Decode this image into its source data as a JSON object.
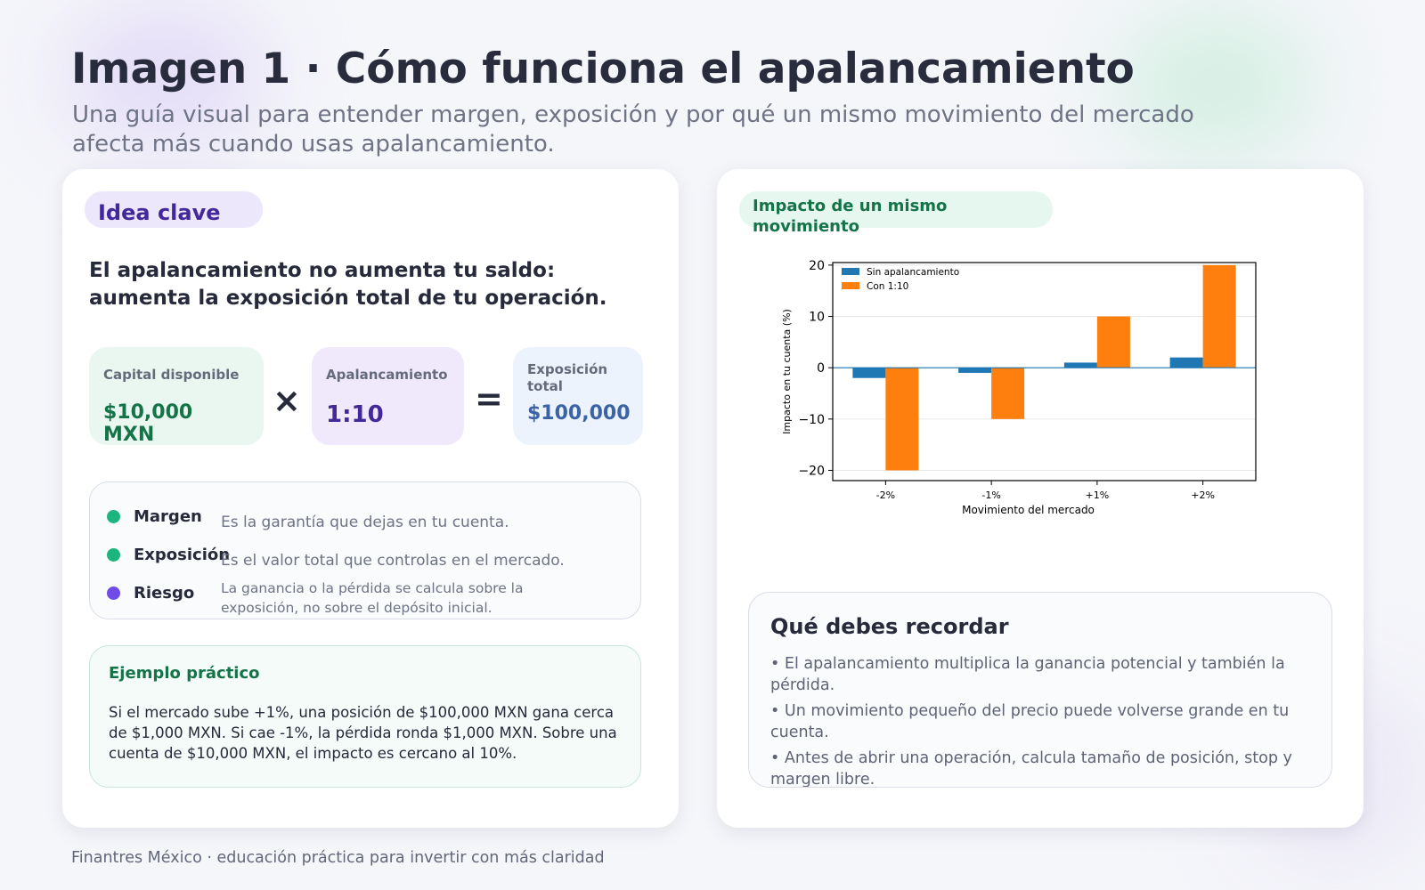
{
  "header": {
    "title": "Imagen 1 · Cómo funciona el apalancamiento",
    "subtitle": "Una guía visual para entender margen, exposición y por qué un mismo movimiento del mercado afecta más cuando usas apalancamiento."
  },
  "left_card": {
    "badge": "Idea clave",
    "lead": "El apalancamiento no aumenta tu saldo: aumenta la exposición total de tu operación.",
    "formula": {
      "capital_label": "Capital disponible",
      "capital_value": "$10,000 MXN",
      "times": "×",
      "leverage_label": "Apalancamiento",
      "leverage_value": "1:10",
      "equals": "=",
      "exposure_label": "Exposición total",
      "exposure_value": "$100,000"
    },
    "glossary": [
      {
        "term": "Margen",
        "definition": "Es la garantía que dejas en tu cuenta.",
        "dot_color": "#1db57f"
      },
      {
        "term": "Exposición",
        "definition": "Es el valor total que controlas en el mercado.",
        "dot_color": "#1db57f"
      },
      {
        "term": "Riesgo",
        "definition": "La ganancia o la pérdida se calcula sobre la exposición, no sobre el depósito inicial.",
        "dot_color": "#6f4ce6"
      }
    ],
    "example": {
      "title": "Ejemplo práctico",
      "body": "Si el mercado sube +1%, una posición de $100,000 MXN gana cerca de $1,000 MXN. Si cae -1%, la pérdida ronda $1,000 MXN. Sobre una cuenta de $10,000 MXN, el impacto es cercano al 10%."
    }
  },
  "right_card": {
    "badge": "Impacto de un mismo movimiento",
    "remember": {
      "title": "Qué debes recordar",
      "items": [
        "• El apalancamiento multiplica la ganancia potencial y también la pérdida.",
        "• Un movimiento pequeño del precio puede volverse grande en tu cuenta.",
        "• Antes de abrir una operación, calcula tamaño de posición, stop y margen libre."
      ]
    }
  },
  "chart_data": {
    "type": "bar",
    "title": "",
    "xlabel": "Movimiento del mercado",
    "ylabel": "Impacto en tu cuenta (%)",
    "categories": [
      "-2%",
      "-1%",
      "+1%",
      "+2%"
    ],
    "series": [
      {
        "name": "Sin apalancamiento",
        "values": [
          -2,
          -1,
          1,
          2
        ],
        "color": "#1f77b4"
      },
      {
        "name": "Con 1:10",
        "values": [
          -20,
          -10,
          10,
          20
        ],
        "color": "#ff7f0e"
      }
    ],
    "ylim": [
      -22,
      20.5
    ],
    "yticks": [
      -20,
      -10,
      0,
      10,
      20
    ],
    "grid": "horizontal",
    "legend": "top-left"
  },
  "footer": "Finantres México · educación práctica para invertir con más claridad"
}
